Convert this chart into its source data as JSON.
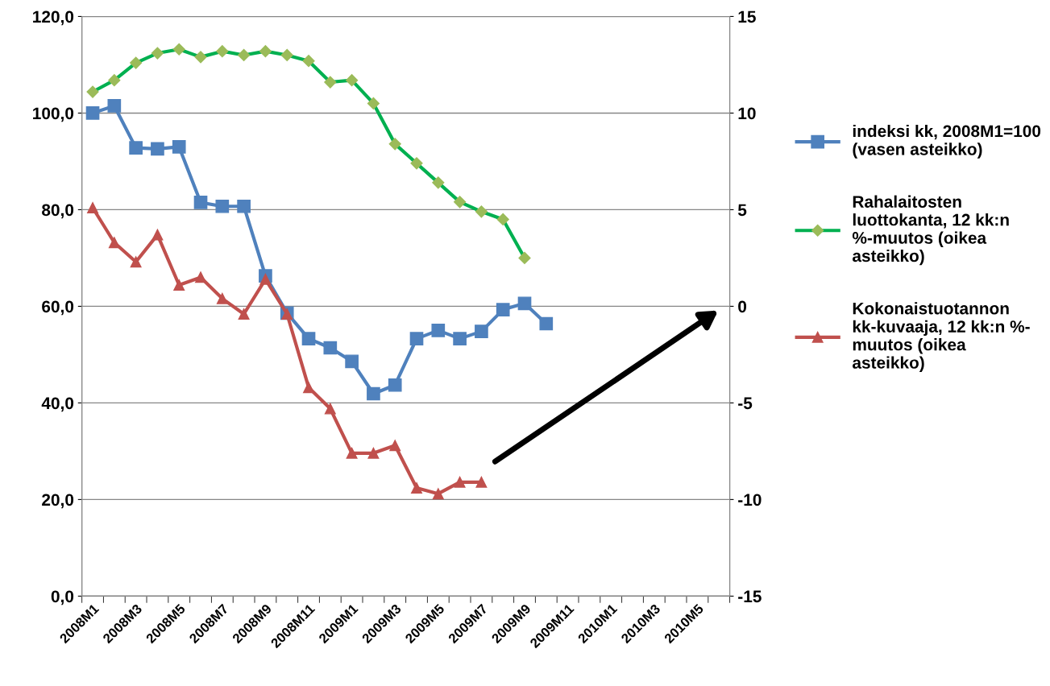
{
  "chart_data": {
    "type": "line",
    "categories": [
      "2008M1",
      null,
      "2008M3",
      null,
      "2008M5",
      null,
      "2008M7",
      null,
      "2008M9",
      null,
      "2008M11",
      null,
      "2009M1",
      null,
      "2009M3",
      null,
      "2009M5",
      null,
      "2009M7",
      null,
      "2009M9",
      null,
      "2009M11",
      null,
      "2010M1",
      null,
      "2010M3",
      null,
      "2010M5",
      null
    ],
    "series": [
      {
        "name": "indeksi kk, 2008M1=100\n(vasen asteikko)",
        "color": "#4f81bd",
        "marker": "square",
        "axis": "y",
        "values": [
          100.0,
          101.5,
          92.8,
          92.6,
          93.0,
          81.5,
          80.7,
          80.7,
          66.3,
          58.6,
          53.3,
          51.4,
          48.6,
          41.9,
          43.7,
          53.3,
          55.0,
          53.3,
          54.8,
          59.3,
          60.6,
          56.4,
          null,
          null,
          null,
          null,
          null,
          null,
          null,
          null
        ]
      },
      {
        "name": "Rahalaitosten\nluottokanta, 12 kk:n\n%-muutos (oikea\nasteikko)",
        "color": "#00b050",
        "marker": "diamond",
        "axis": "y2",
        "values": [
          11.1,
          11.7,
          12.6,
          13.1,
          13.3,
          12.9,
          13.2,
          13.0,
          13.2,
          13.0,
          12.7,
          11.6,
          11.7,
          10.5,
          8.4,
          7.4,
          6.4,
          5.4,
          4.9,
          4.5,
          2.5,
          null,
          null,
          null,
          null,
          null,
          null,
          null,
          null,
          null
        ]
      },
      {
        "name": "Kokonaistuotannon\nkk-kuvaaja, 12 kk:n %-\nmuutos (oikea\nasteikko)",
        "color": "#c0504d",
        "marker": "triangle",
        "axis": "y2",
        "values": [
          5.1,
          3.3,
          2.3,
          3.7,
          1.1,
          1.5,
          0.4,
          -0.4,
          1.4,
          -0.4,
          -4.2,
          -5.3,
          -7.6,
          -7.6,
          -7.2,
          -9.4,
          -9.7,
          -9.1,
          -9.1,
          null,
          null,
          null,
          null,
          null,
          null,
          null,
          null,
          null,
          null,
          null
        ]
      }
    ],
    "ylim": [
      0,
      120
    ],
    "yticks": [
      {
        "value": 0,
        "label": "0,0"
      },
      {
        "value": 20,
        "label": "20,0"
      },
      {
        "value": 40,
        "label": "40,0"
      },
      {
        "value": 60,
        "label": "60,0"
      },
      {
        "value": 80,
        "label": "80,0"
      },
      {
        "value": 100,
        "label": "100,0"
      },
      {
        "value": 120,
        "label": "120,0"
      }
    ],
    "y2lim": [
      -15,
      15
    ],
    "y2ticks": [
      {
        "value": -15,
        "label": "-15"
      },
      {
        "value": -10,
        "label": "-10"
      },
      {
        "value": -5,
        "label": "-5"
      },
      0,
      5,
      10,
      15
    ],
    "grid": "y",
    "legend": "right"
  }
}
